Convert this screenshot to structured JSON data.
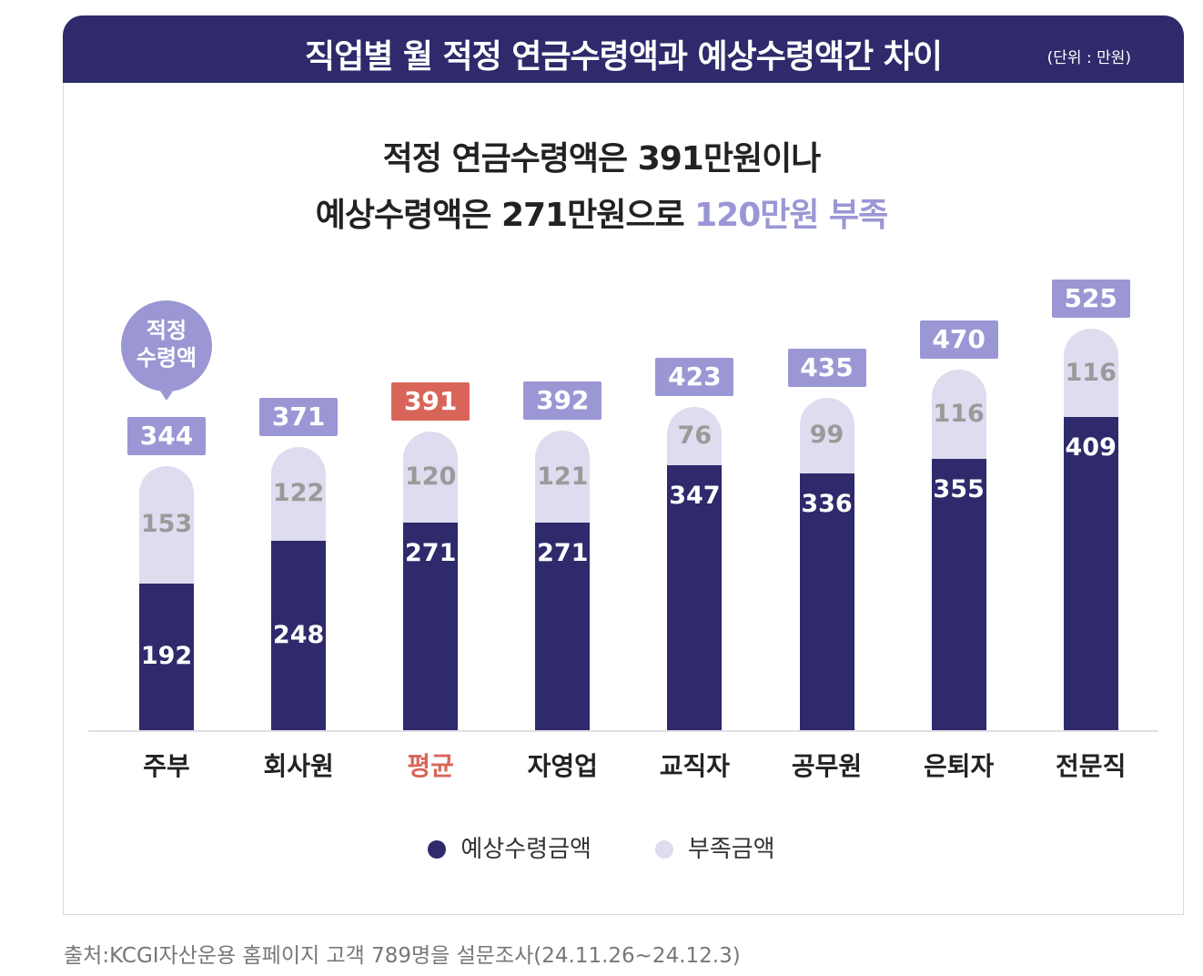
{
  "chart_data": {
    "type": "bar",
    "stacked": true,
    "title": "직업별 월 적정 연금수령액과 예상수령액간 차이",
    "unit": "(단위 : 만원)",
    "headline": {
      "line1": "적정 연금수령액은 391만원이나",
      "line2_prefix": "예상수령액은 271만원으로 ",
      "line2_highlight": "120만원 부족"
    },
    "categories": [
      "주부",
      "회사원",
      "평균",
      "자영업",
      "교직자",
      "공무원",
      "은퇴자",
      "전문직"
    ],
    "highlight_category": "평균",
    "series": [
      {
        "name": "예상수령금액",
        "color": "#2e2a6b",
        "values": [
          192,
          248,
          271,
          271,
          347,
          336,
          355,
          409
        ]
      },
      {
        "name": "부족금액",
        "color": "#dedcef",
        "values": [
          153,
          122,
          120,
          121,
          76,
          99,
          116,
          116
        ]
      }
    ],
    "totals": [
      344,
      371,
      391,
      392,
      423,
      435,
      470,
      525
    ],
    "totals_label": "적정\n수령액",
    "total_label_color": "#9b97d4",
    "highlight_color": "#d9655a",
    "legend_position": "bottom",
    "grid": false
  },
  "bubble": {
    "line1": "적정",
    "line2": "수령액"
  },
  "source": "출처:KCGI자산운용 홈페이지 고객 789명을 설문조사(24.11.26~24.12.3)"
}
